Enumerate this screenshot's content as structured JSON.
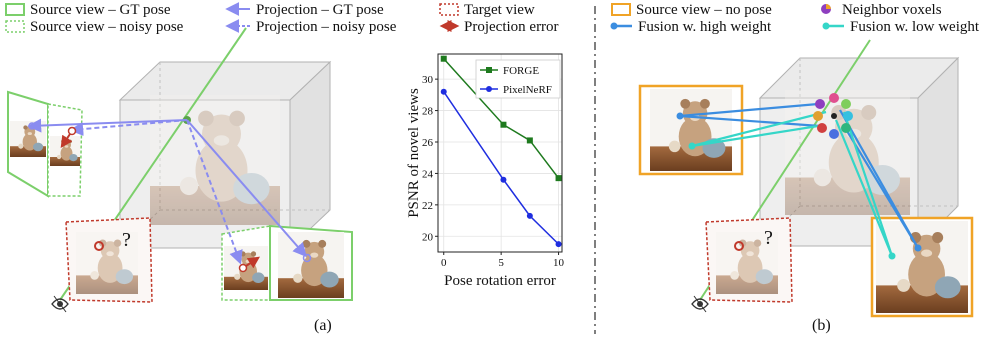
{
  "legend_a": {
    "source_gt": "Source view – GT pose",
    "source_noisy": "Source view – noisy pose",
    "proj_gt": "Projection – GT pose",
    "proj_noisy": "Projection – noisy pose",
    "target": "Target view",
    "proj_error": "Projection error"
  },
  "legend_b": {
    "source_nopose": "Source view – no pose",
    "neighbor": "Neighbor voxels",
    "fusion_high": "Fusion w. high weight",
    "fusion_low": "Fusion w. low weight"
  },
  "question_mark": "?",
  "caption_a": "(a)",
  "caption_b": "(b)",
  "colors": {
    "gt_green": "#7ccf6b",
    "proj_purple": "#8a8cf0",
    "target_red": "#c0392b",
    "nopose_orange": "#f0a326",
    "fusion_high": "#3b8de0",
    "fusion_low": "#35d6c8",
    "forge": "#1e7a1e",
    "pixelnerf": "#1f2ee0"
  },
  "icons": [
    "eye-icon",
    "teddy-bear-photo",
    "voxel-cube"
  ],
  "chart_data": {
    "type": "line",
    "x": [
      0,
      5.2,
      7.5,
      10
    ],
    "series": [
      {
        "name": "FORGE",
        "values": [
          31.3,
          27.1,
          26.1,
          23.7
        ]
      },
      {
        "name": "PixelNeRF",
        "values": [
          29.2,
          23.6,
          21.3,
          19.5
        ]
      }
    ],
    "xlabel": "Pose rotation error",
    "ylabel": "PSNR of novel views",
    "xlim": [
      -0.5,
      10.3
    ],
    "ylim": [
      19,
      31.6
    ],
    "xticks": [
      0,
      5,
      10
    ],
    "yticks": [
      20,
      22,
      24,
      26,
      28,
      30
    ],
    "legend_position": "top-right",
    "grid": true
  }
}
